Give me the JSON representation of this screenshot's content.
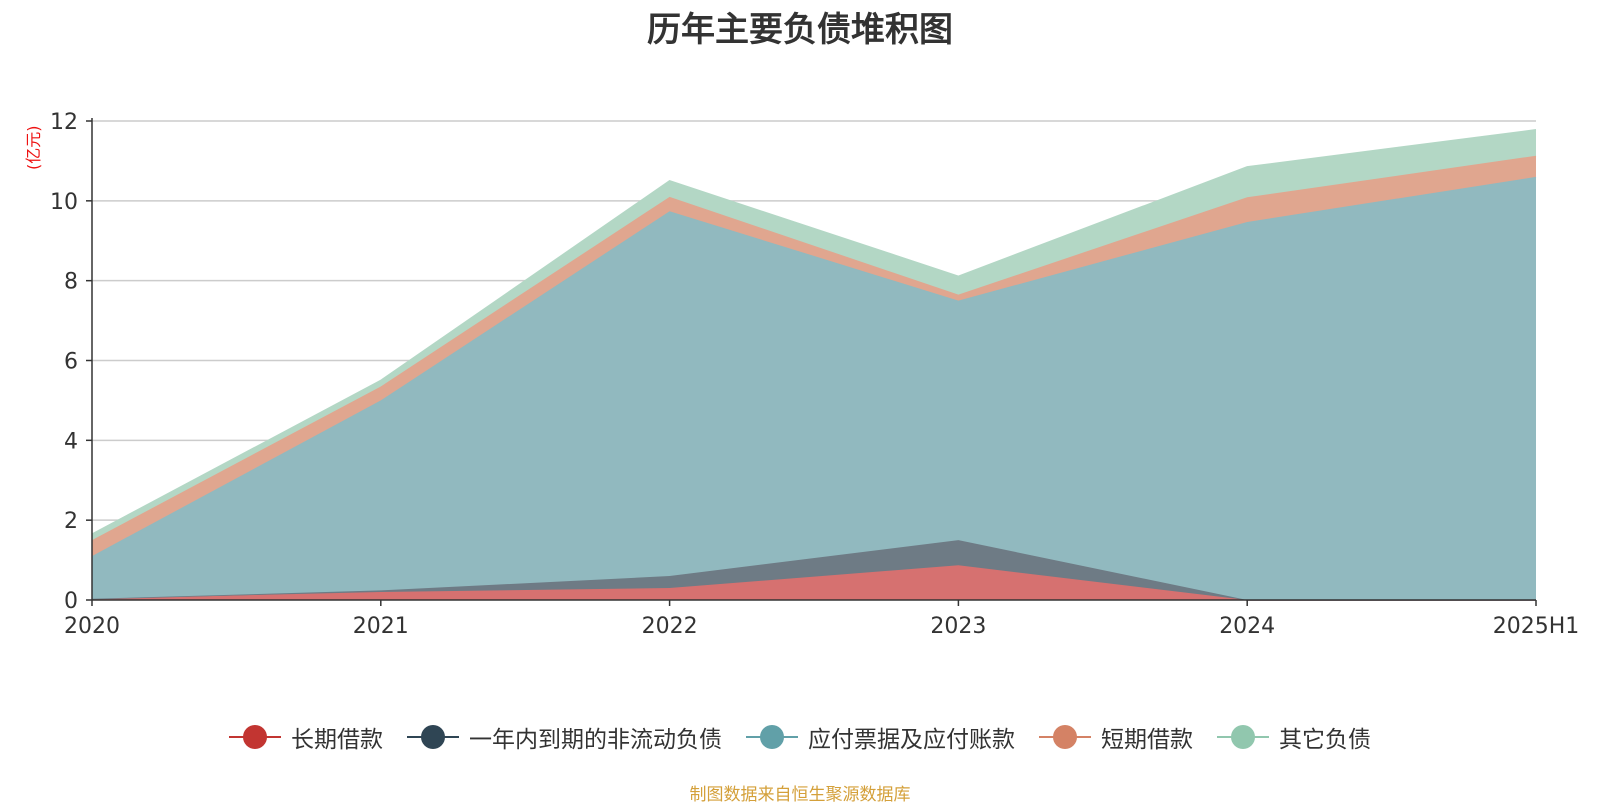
{
  "title": "历年主要负债堆积图",
  "unit_label": "(亿元)",
  "source": "制图数据来自恒生聚源数据库",
  "chart_data": {
    "type": "area",
    "stacked": true,
    "title": "历年主要负债堆积图",
    "ylabel": "(亿元)",
    "x": [
      "2020",
      "2021",
      "2022",
      "2023",
      "2024",
      "2025H1"
    ],
    "ylim": [
      0,
      12
    ],
    "yticks": [
      "0",
      "2",
      "4",
      "6",
      "8",
      "10",
      "12"
    ],
    "grid": true,
    "legend_position": "bottom",
    "series": [
      {
        "name": "长期借款",
        "color": "#c23531",
        "area_color": "#d67170",
        "values": [
          0.03,
          0.2,
          0.3,
          0.87,
          0.0,
          0.0
        ]
      },
      {
        "name": "一年内到期的非流动负债",
        "color": "#2f4554",
        "area_color": "#6e7b85",
        "values": [
          0.0,
          0.04,
          0.3,
          0.63,
          0.0,
          0.0
        ]
      },
      {
        "name": "应付票据及应付账款",
        "color": "#61a0a8",
        "area_color": "#91b9bf",
        "values": [
          1.07,
          4.76,
          9.14,
          6.0,
          9.47,
          10.6
        ]
      },
      {
        "name": "短期借款",
        "color": "#d48265",
        "area_color": "#e0a68f",
        "values": [
          0.4,
          0.35,
          0.36,
          0.15,
          0.62,
          0.53
        ]
      },
      {
        "name": "其它负债",
        "color": "#91c7ae",
        "area_color": "#b3d7c5",
        "values": [
          0.15,
          0.15,
          0.4,
          0.46,
          0.76,
          0.65
        ]
      }
    ]
  }
}
